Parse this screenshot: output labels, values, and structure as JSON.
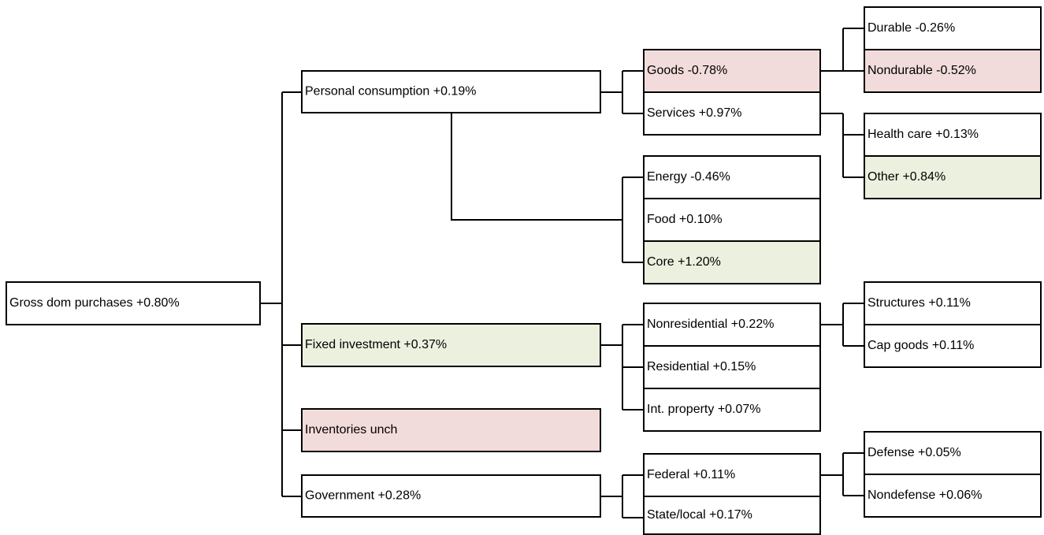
{
  "nodes": [
    {
      "label": "Gross dom purchases +0.80%",
      "color": "#ffffff"
    },
    {
      "label": "Personal consumption +0.19%",
      "color": "#ffffff"
    },
    {
      "label": "Fixed investment +0.37%",
      "color": "#ebf1de"
    },
    {
      "label": "Inventories unch",
      "color": "#f2dcdb"
    },
    {
      "label": "Government +0.28%",
      "color": "#ffffff"
    },
    {
      "label": "Goods -0.78%",
      "color": "#f2dcdb"
    },
    {
      "label": "Services +0.97%",
      "color": "#ffffff"
    },
    {
      "label": "Energy -0.46%",
      "color": "#ffffff"
    },
    {
      "label": "Food +0.10%",
      "color": "#ffffff"
    },
    {
      "label": "Core +1.20%",
      "color": "#ebf1de"
    },
    {
      "label": "Nonresidential +0.22%",
      "color": "#ffffff"
    },
    {
      "label": "Residential +0.15%",
      "color": "#ffffff"
    },
    {
      "label": "Int. property +0.07%",
      "color": "#ffffff"
    },
    {
      "label": "Federal +0.11%",
      "color": "#ffffff"
    },
    {
      "label": "State/local +0.17%",
      "color": "#ffffff"
    },
    {
      "label": "Durable -0.26%",
      "color": "#ffffff"
    },
    {
      "label": "Nondurable -0.52%",
      "color": "#f2dcdb"
    },
    {
      "label": "Health care +0.13%",
      "color": "#ffffff"
    },
    {
      "label": "Other +0.84%",
      "color": "#ebf1de"
    },
    {
      "label": "Structures +0.11%",
      "color": "#ffffff"
    },
    {
      "label": "Cap goods +0.11%",
      "color": "#ffffff"
    },
    {
      "label": "Defense +0.05%",
      "color": "#ffffff"
    },
    {
      "label": "Nondefense +0.06%",
      "color": "#ffffff"
    }
  ]
}
